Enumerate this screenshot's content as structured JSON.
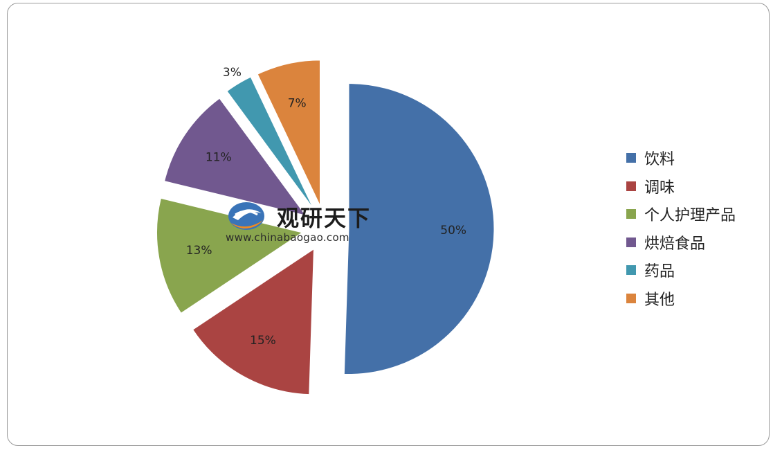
{
  "chart_data": {
    "type": "pie",
    "categories": [
      "饮料",
      "调味",
      "个人护理产品",
      "烘焙食品",
      "药品",
      "其他"
    ],
    "values": [
      50,
      15,
      13,
      11,
      3,
      7
    ],
    "value_labels": [
      "50%",
      "15%",
      "13%",
      "11%",
      "3%",
      "7%"
    ],
    "colors": [
      "#4470a8",
      "#aa4442",
      "#89a54e",
      "#71588f",
      "#4198af",
      "#db843d"
    ],
    "exploded": true,
    "legend_position": "right",
    "title": ""
  },
  "watermark": {
    "title": "观研天下",
    "url": "www.chinabaogao.com"
  }
}
